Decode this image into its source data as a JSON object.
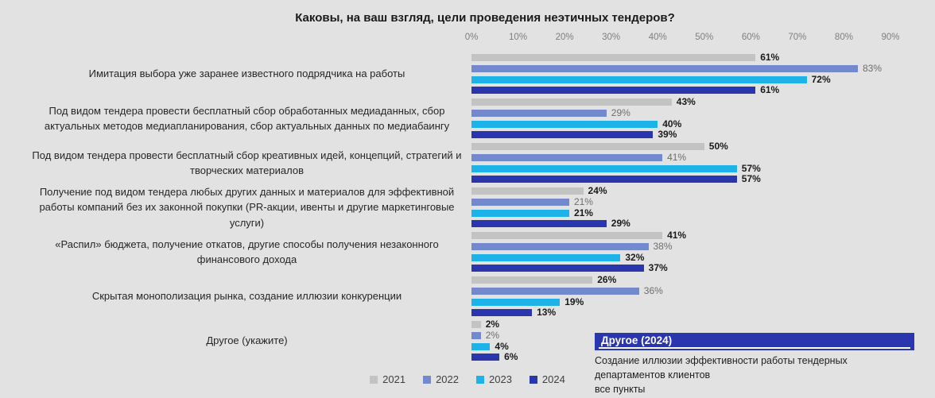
{
  "title": "Каковы, на ваш взгляд, цели проведения неэтичных тендеров?",
  "chart_data": {
    "type": "bar",
    "orientation": "horizontal",
    "title": "Каковы, на ваш взгляд, цели проведения неэтичных тендеров?",
    "categories": [
      "Имитация выбора уже заранее известного подрядчика на работы",
      "Под видом тендера провести бесплатный сбор обработанных медиаданных, сбор актуальных методов медиапланирования, сбор актуальных данных по медиабаингу",
      "Под видом тендера провести бесплатный сбор креативных идей, концепций, стратегий и творческих материалов",
      "Получение под видом тендера любых других данных и материалов для эффективной работы компаний без их законной покупки (PR-акции, ивенты и другие маркетинговые услуги)",
      "«Распил» бюджета, получение откатов, другие способы получения незаконного финансового дохода",
      "Скрытая монополизация рынка, создание иллюзии конкуренции",
      "Другое (укажите)"
    ],
    "series": [
      {
        "name": "2021",
        "color": "#c3c3c3",
        "label_color": "#1a1a1a",
        "label_muted": false,
        "values": [
          61,
          43,
          50,
          24,
          41,
          26,
          2
        ]
      },
      {
        "name": "2022",
        "color": "#7289ce",
        "label_color": "#6e6e6e",
        "label_muted": true,
        "values": [
          83,
          29,
          41,
          21,
          38,
          36,
          2
        ]
      },
      {
        "name": "2023",
        "color": "#1eb3e8",
        "label_color": "#1a1a1a",
        "label_muted": false,
        "values": [
          72,
          40,
          57,
          21,
          32,
          19,
          4
        ]
      },
      {
        "name": "2024",
        "color": "#2a36ad",
        "label_color": "#1a1a1a",
        "label_muted": false,
        "values": [
          61,
          39,
          57,
          29,
          37,
          13,
          6
        ]
      }
    ],
    "value_suffix": "%",
    "x_axis": {
      "min": 0,
      "max": 90,
      "ticks": [
        "0%",
        "10%",
        "20%",
        "30%",
        "40%",
        "50%",
        "60%",
        "70%",
        "80%",
        "90%"
      ]
    },
    "grid": false,
    "legend_position": "bottom",
    "background_color": "#e2e2e2"
  },
  "callout": {
    "header": "Другое (2024)",
    "header_bg": "#2a36ad",
    "header_color": "#ffffff",
    "lines": [
      "Создание иллюзии эффективности работы тендерных департаментов клиентов",
      "все пункты"
    ]
  }
}
